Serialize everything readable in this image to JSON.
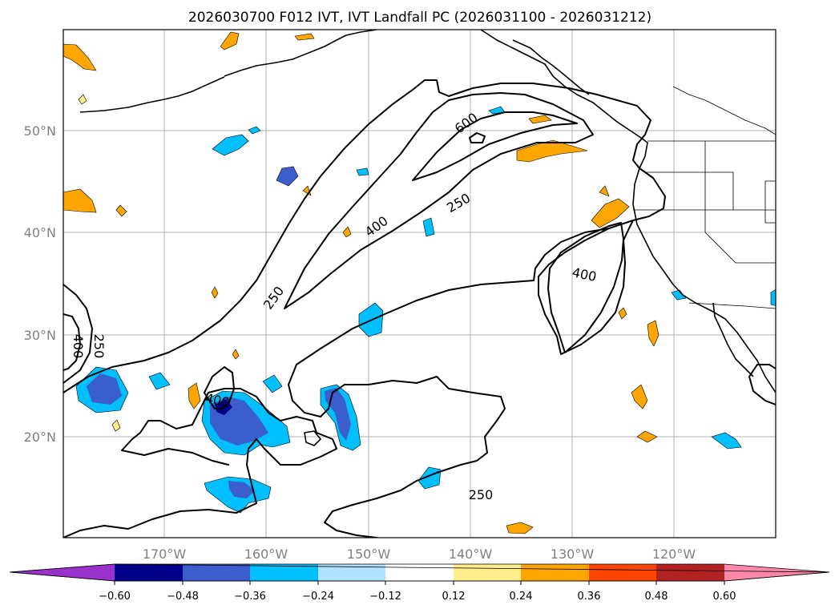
{
  "title": "2026030700 F012 IVT, IVT Landfall PC (2026031100 - 2026031212)",
  "lat_labels": [
    "50°N",
    "40°N",
    "30°N",
    "20°N"
  ],
  "lon_labels": [
    "170°W",
    "160°W",
    "150°W",
    "140°W",
    "130°W",
    "120°W"
  ],
  "contour_labels": [
    "600",
    "400",
    "250",
    "400",
    "250",
    "250",
    "400",
    "400",
    "250"
  ],
  "colorbar": {
    "colors": [
      "#9932cc",
      "#00008b",
      "#3a5fcd",
      "#00bfff",
      "#b0e2ff",
      "#ffffff",
      "#ffec8b",
      "#ffa500",
      "#ff4500",
      "#b22222",
      "#ff88aa"
    ],
    "ticks": [
      "−0.60",
      "−0.48",
      "−0.36",
      "−0.24",
      "−0.12",
      "0.12",
      "0.24",
      "0.36",
      "0.48",
      "0.60"
    ]
  }
}
